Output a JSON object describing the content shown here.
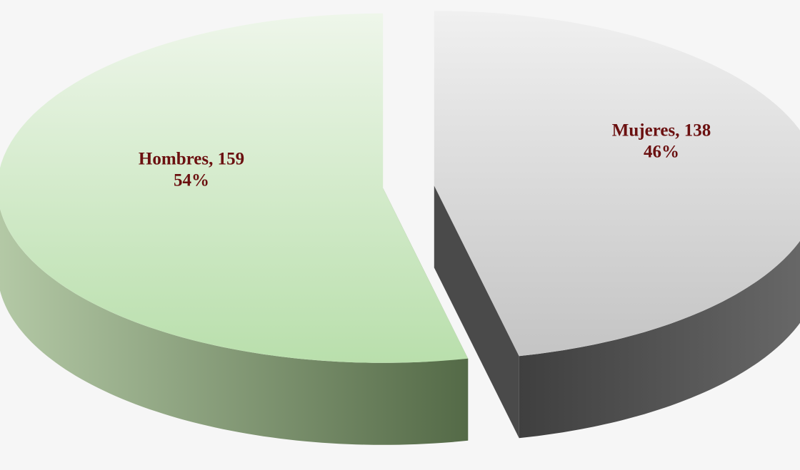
{
  "chart_data": {
    "type": "pie3d",
    "categories": [
      "Hombres",
      "Mujeres"
    ],
    "values": [
      159,
      138
    ],
    "value_labels": [
      "Hombres, 159",
      "Mujeres, 138"
    ],
    "percent": [
      54,
      46
    ],
    "percent_labels": [
      "54%",
      "46%"
    ],
    "colors": [
      "#c3e4b7",
      "#d2d2d2"
    ]
  }
}
